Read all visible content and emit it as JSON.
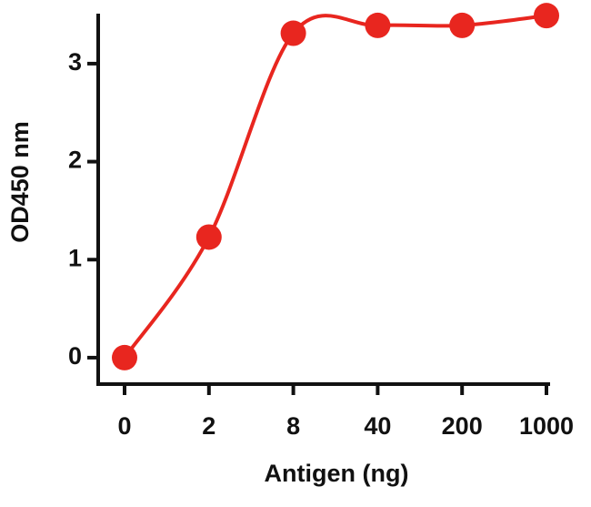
{
  "chart_data": {
    "type": "line",
    "x_label": "Antigen (ng)",
    "y_label": "OD450 nm",
    "categories": [
      "0",
      "2",
      "8",
      "40",
      "200",
      "1000"
    ],
    "series": [
      {
        "color": "#e8261f",
        "values": [
          0,
          1.23,
          3.31,
          3.39,
          3.39,
          3.49
        ]
      }
    ],
    "ylim": [
      -0.27,
      3.51
    ],
    "yticks": [
      0,
      1,
      2,
      3
    ]
  }
}
